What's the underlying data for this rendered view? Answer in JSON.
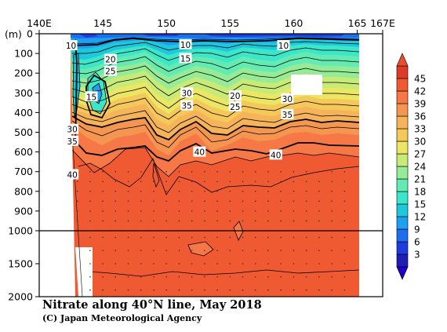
{
  "chart_data": {
    "type": "heatmap",
    "title": "Nitrate along 40°N line, May 2018",
    "credit": "(C) Japan Meteorological Agency",
    "x_tick_labels": [
      "140E",
      "145",
      "150",
      "155",
      "160",
      "165",
      "167E"
    ],
    "x_tick_values": [
      140,
      145,
      150,
      155,
      160,
      165,
      167
    ],
    "xlim": [
      140,
      167
    ],
    "y_unit_label": "(m)",
    "y_tick_labels": [
      "0",
      "100",
      "200",
      "300",
      "400",
      "500",
      "600",
      "700",
      "800",
      "900",
      "1000",
      "1500",
      "2000"
    ],
    "y_tick_values": [
      0,
      100,
      200,
      300,
      400,
      500,
      600,
      700,
      800,
      900,
      1000,
      1500,
      2000
    ],
    "ylim": [
      2000,
      0
    ],
    "y_scale": "linear 0-1000 m, compressed 1000-2000 m",
    "colorbar": {
      "labels": [
        "3",
        "6",
        "9",
        "12",
        "15",
        "18",
        "21",
        "24",
        "27",
        "30",
        "33",
        "36",
        "39",
        "42",
        "45"
      ],
      "colors": [
        "#1e1eb4",
        "#1e3cdc",
        "#1e6ef0",
        "#1ea0f0",
        "#1ec8dc",
        "#3ce6c8",
        "#64ebb4",
        "#96eb96",
        "#c8eb78",
        "#ebe664",
        "#f5c85a",
        "#f5b45a",
        "#f59650",
        "#f57846",
        "#f05a32",
        "#dc3c28"
      ],
      "extend": "both"
    },
    "contour_labels": [
      {
        "value": 10,
        "lon": 142.5,
        "depth": 60
      },
      {
        "value": 10,
        "lon": 151.5,
        "depth": 55
      },
      {
        "value": 10,
        "lon": 159.2,
        "depth": 60
      },
      {
        "value": 15,
        "lon": 151.5,
        "depth": 125
      },
      {
        "value": 20,
        "lon": 145.6,
        "depth": 130
      },
      {
        "value": 25,
        "lon": 145.6,
        "depth": 190
      },
      {
        "value": 15,
        "lon": 144.1,
        "depth": 320
      },
      {
        "value": 20,
        "lon": 155.4,
        "depth": 315
      },
      {
        "value": 25,
        "lon": 155.4,
        "depth": 370
      },
      {
        "value": 30,
        "lon": 151.6,
        "depth": 300
      },
      {
        "value": 35,
        "lon": 151.6,
        "depth": 365
      },
      {
        "value": 30,
        "lon": 159.5,
        "depth": 330
      },
      {
        "value": 35,
        "lon": 159.5,
        "depth": 410
      },
      {
        "value": 30,
        "lon": 142.6,
        "depth": 485
      },
      {
        "value": 35,
        "lon": 142.6,
        "depth": 545
      },
      {
        "value": 40,
        "lon": 142.6,
        "depth": 715
      },
      {
        "value": 40,
        "lon": 152.6,
        "depth": 600
      },
      {
        "value": 40,
        "lon": 158.6,
        "depth": 615
      }
    ],
    "no_data_regions": [
      "coast west of 142.5E",
      "box 159.5-161E, 200-310 m",
      "west edge below 1000 m"
    ],
    "grid": false
  }
}
